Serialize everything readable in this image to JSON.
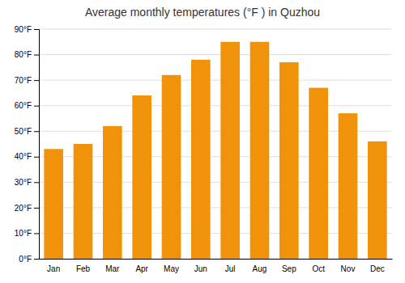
{
  "chart_data": {
    "type": "bar",
    "title": "Average monthly temperatures (°F ) in Quzhou",
    "categories": [
      "Jan",
      "Feb",
      "Mar",
      "Apr",
      "May",
      "Jun",
      "Jul",
      "Aug",
      "Sep",
      "Oct",
      "Nov",
      "Dec"
    ],
    "values": [
      43,
      45,
      52,
      64,
      72,
      78,
      85,
      85,
      77,
      67,
      57,
      46
    ],
    "color": "#F0920A",
    "ylim": [
      0,
      90
    ],
    "yticks": [
      {
        "value": 0,
        "label": "0°F"
      },
      {
        "value": 10,
        "label": "10°F"
      },
      {
        "value": 20,
        "label": "20°F"
      },
      {
        "value": 30,
        "label": "30°F"
      },
      {
        "value": 40,
        "label": "40°F"
      },
      {
        "value": 50,
        "label": "50°F"
      },
      {
        "value": 60,
        "label": "60°F"
      },
      {
        "value": 70,
        "label": "70°F"
      },
      {
        "value": 80,
        "label": "80°F"
      },
      {
        "value": 90,
        "label": "90°F"
      }
    ],
    "grid": true
  }
}
